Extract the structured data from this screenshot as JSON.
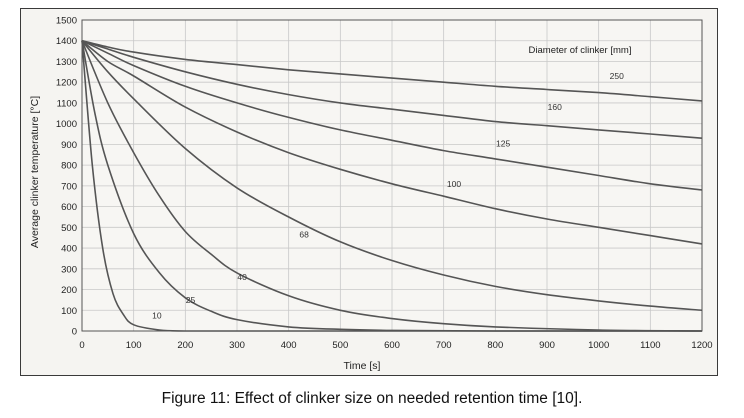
{
  "figure": {
    "caption": "Figure 11: Effect of clinker size on needed retention time [10]."
  },
  "chart_data": {
    "type": "line",
    "title": "",
    "xlabel": "Time [s]",
    "ylabel": "Average clinker temperature [°C]",
    "xlim": [
      0,
      1200
    ],
    "ylim": [
      0,
      1500
    ],
    "x_ticks": [
      0,
      100,
      200,
      300,
      400,
      500,
      600,
      700,
      800,
      900,
      1000,
      1100,
      1200
    ],
    "y_ticks": [
      0,
      100,
      200,
      300,
      400,
      500,
      600,
      700,
      800,
      900,
      1000,
      1100,
      1200,
      1300,
      1400,
      1500
    ],
    "grid": true,
    "legend": {
      "title": "Diameter of clinker [mm]",
      "placement": "top-right"
    },
    "colors": {
      "line": "#555555",
      "grid": "#c8c8c8",
      "background": "#f5f4f1"
    },
    "series": [
      {
        "name": "10",
        "label_at": [
          145,
          60
        ],
        "x": [
          0,
          20,
          40,
          60,
          80,
          100,
          150,
          200,
          300,
          1200
        ],
        "values": [
          1400,
          800,
          400,
          180,
          80,
          30,
          5,
          0,
          0,
          0
        ]
      },
      {
        "name": "25",
        "label_at": [
          210,
          135
        ],
        "x": [
          0,
          25,
          50,
          100,
          150,
          200,
          250,
          300,
          400,
          500,
          600,
          800,
          1200
        ],
        "values": [
          1400,
          1050,
          800,
          470,
          280,
          160,
          95,
          55,
          20,
          8,
          3,
          0,
          0
        ]
      },
      {
        "name": "40",
        "label_at": [
          310,
          245
        ],
        "x": [
          0,
          50,
          100,
          150,
          200,
          250,
          300,
          400,
          500,
          600,
          700,
          800,
          1000,
          1200
        ],
        "values": [
          1400,
          1100,
          860,
          650,
          480,
          370,
          280,
          170,
          100,
          60,
          35,
          20,
          5,
          0
        ]
      },
      {
        "name": "68",
        "label_at": [
          430,
          450
        ],
        "x": [
          0,
          50,
          100,
          200,
          300,
          400,
          500,
          600,
          700,
          800,
          900,
          1000,
          1100,
          1200
        ],
        "values": [
          1400,
          1250,
          1120,
          880,
          690,
          550,
          430,
          340,
          270,
          215,
          175,
          145,
          120,
          100
        ]
      },
      {
        "name": "100",
        "label_at": [
          720,
          695
        ],
        "x": [
          0,
          50,
          100,
          200,
          300,
          400,
          500,
          600,
          700,
          800,
          900,
          1000,
          1100,
          1200
        ],
        "values": [
          1400,
          1300,
          1230,
          1080,
          960,
          860,
          780,
          710,
          650,
          590,
          540,
          500,
          460,
          420
        ]
      },
      {
        "name": "125",
        "label_at": [
          815,
          890
        ],
        "x": [
          0,
          50,
          100,
          200,
          300,
          400,
          500,
          600,
          700,
          800,
          900,
          1000,
          1100,
          1200
        ],
        "values": [
          1400,
          1340,
          1280,
          1180,
          1100,
          1030,
          970,
          920,
          870,
          830,
          790,
          750,
          710,
          680
        ]
      },
      {
        "name": "160",
        "label_at": [
          915,
          1065
        ],
        "x": [
          0,
          50,
          100,
          200,
          300,
          400,
          500,
          600,
          700,
          800,
          900,
          1000,
          1100,
          1200
        ],
        "values": [
          1400,
          1360,
          1320,
          1250,
          1190,
          1140,
          1100,
          1070,
          1040,
          1010,
          990,
          970,
          950,
          930
        ]
      },
      {
        "name": "250",
        "label_at": [
          1035,
          1215
        ],
        "x": [
          0,
          50,
          100,
          200,
          300,
          400,
          500,
          600,
          700,
          800,
          900,
          1000,
          1100,
          1200
        ],
        "values": [
          1400,
          1370,
          1345,
          1310,
          1285,
          1260,
          1240,
          1220,
          1200,
          1180,
          1165,
          1150,
          1130,
          1110
        ]
      }
    ]
  }
}
